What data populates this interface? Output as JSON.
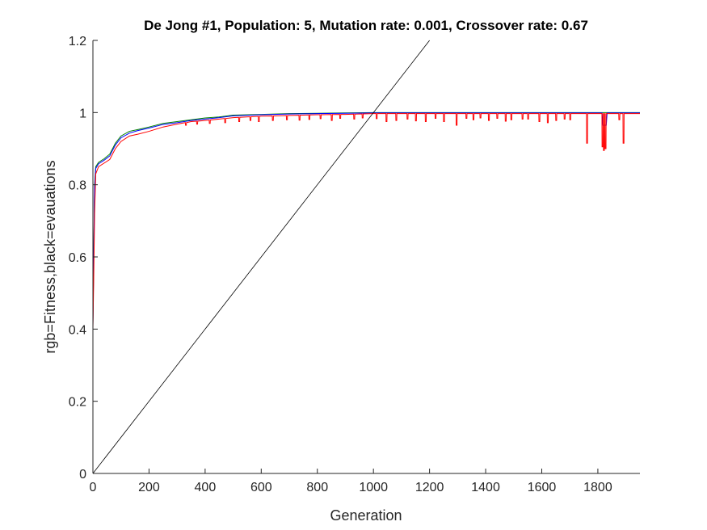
{
  "chart_data": {
    "type": "line",
    "title": "De Jong #1, Population: 5, Mutation rate: 0.001, Crossover rate: 0.67",
    "xlabel": "Generation",
    "ylabel": "rgb=Fitness,black=evauations",
    "xlim": [
      0,
      1950
    ],
    "ylim": [
      0,
      1.2
    ],
    "grid": false,
    "x_ticks": [
      "0",
      "200",
      "400",
      "600",
      "800",
      "1000",
      "1200",
      "1400",
      "1600",
      "1800"
    ],
    "y_ticks": [
      "0",
      "0.2",
      "0.4",
      "0.6",
      "0.8",
      "1",
      "1.2"
    ],
    "x_tick_values": [
      0,
      200,
      400,
      600,
      800,
      1000,
      1200,
      1400,
      1600,
      1800
    ],
    "y_tick_values": [
      0,
      0.2,
      0.4,
      0.6,
      0.8,
      1,
      1.2
    ],
    "series": [
      {
        "color": "#008000",
        "x": [
          0,
          3,
          6,
          10,
          20,
          40,
          60,
          80,
          100,
          130,
          160,
          200,
          250,
          300,
          350,
          400,
          450,
          500,
          600,
          700,
          800,
          900,
          1000,
          1950
        ],
        "y": [
          0.41,
          0.62,
          0.8,
          0.85,
          0.862,
          0.872,
          0.885,
          0.915,
          0.935,
          0.948,
          0.953,
          0.96,
          0.97,
          0.975,
          0.98,
          0.985,
          0.988,
          0.993,
          0.995,
          0.997,
          0.998,
          0.999,
          1.0,
          1.0
        ]
      },
      {
        "color": "#0000ff",
        "x": [
          0,
          3,
          6,
          10,
          20,
          40,
          60,
          80,
          100,
          130,
          160,
          200,
          250,
          300,
          350,
          400,
          450,
          500,
          600,
          700,
          800,
          900,
          1000,
          1815,
          1818,
          1830,
          1833,
          1950
        ],
        "y": [
          0.41,
          0.6,
          0.79,
          0.845,
          0.858,
          0.868,
          0.88,
          0.91,
          0.93,
          0.943,
          0.95,
          0.957,
          0.967,
          0.972,
          0.978,
          0.982,
          0.986,
          0.991,
          0.994,
          0.996,
          0.997,
          0.998,
          0.999,
          0.999,
          0.965,
          0.965,
          0.999,
          0.999
        ]
      },
      {
        "color": "#ff0000",
        "x": [
          0,
          3,
          6,
          10,
          20,
          40,
          60,
          80,
          100,
          130,
          160,
          200,
          250,
          300,
          350,
          400,
          450,
          500,
          600,
          700,
          800,
          900,
          1000,
          1950
        ],
        "y": [
          0.4,
          0.55,
          0.72,
          0.83,
          0.85,
          0.86,
          0.87,
          0.9,
          0.92,
          0.935,
          0.94,
          0.948,
          0.96,
          0.968,
          0.975,
          0.978,
          0.982,
          0.986,
          0.99,
          0.992,
          0.994,
          0.995,
          0.997,
          0.997
        ],
        "dips": [
          [
            330,
            0.965
          ],
          [
            370,
            0.968
          ],
          [
            415,
            0.97
          ],
          [
            470,
            0.972
          ],
          [
            520,
            0.975
          ],
          [
            560,
            0.978
          ],
          [
            590,
            0.975
          ],
          [
            640,
            0.978
          ],
          [
            690,
            0.98
          ],
          [
            735,
            0.979
          ],
          [
            770,
            0.981
          ],
          [
            810,
            0.983
          ],
          [
            850,
            0.978
          ],
          [
            880,
            0.984
          ],
          [
            930,
            0.982
          ],
          [
            960,
            0.985
          ],
          [
            1010,
            0.983
          ],
          [
            1045,
            0.975
          ],
          [
            1080,
            0.978
          ],
          [
            1120,
            0.982
          ],
          [
            1150,
            0.977
          ],
          [
            1185,
            0.975
          ],
          [
            1220,
            0.984
          ],
          [
            1250,
            0.975
          ],
          [
            1295,
            0.965
          ],
          [
            1330,
            0.984
          ],
          [
            1355,
            0.98
          ],
          [
            1380,
            0.985
          ],
          [
            1410,
            0.978
          ],
          [
            1440,
            0.984
          ],
          [
            1470,
            0.976
          ],
          [
            1490,
            0.98
          ],
          [
            1530,
            0.982
          ],
          [
            1550,
            0.982
          ],
          [
            1590,
            0.975
          ],
          [
            1620,
            0.972
          ],
          [
            1650,
            0.978
          ],
          [
            1680,
            0.982
          ],
          [
            1700,
            0.98
          ],
          [
            1760,
            0.915
          ],
          [
            1815,
            0.905
          ],
          [
            1820,
            0.895
          ],
          [
            1826,
            0.9
          ],
          [
            1875,
            0.98
          ],
          [
            1890,
            0.915
          ]
        ]
      },
      {
        "color": "#000000",
        "x": [
          0,
          1200
        ],
        "y": [
          0,
          1.2
        ]
      }
    ]
  }
}
